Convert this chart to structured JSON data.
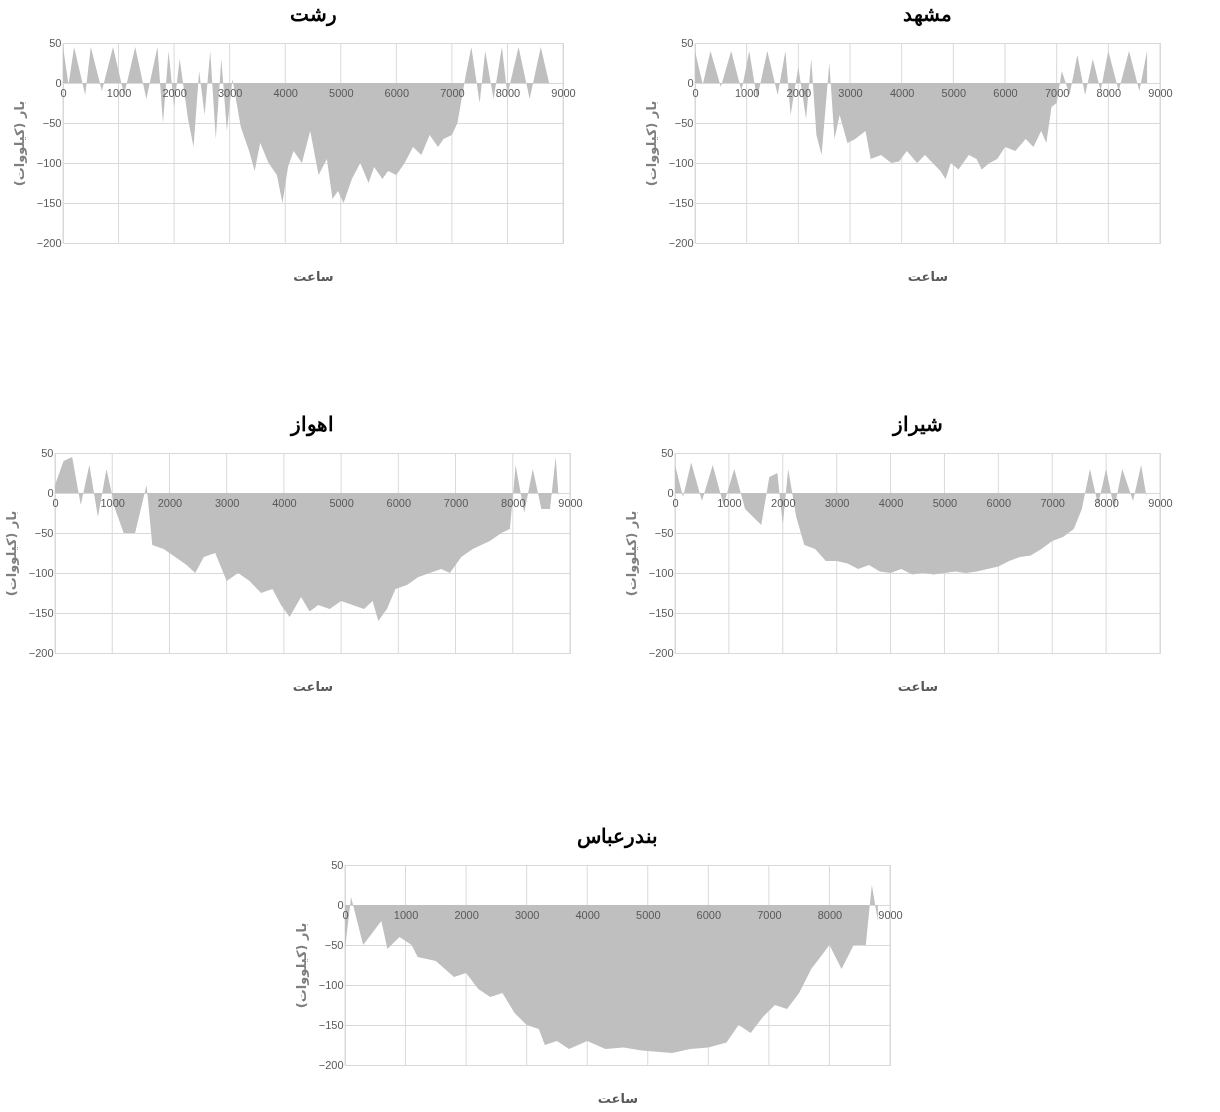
{
  "chart_data": [
    {
      "type": "area",
      "title": "رشت",
      "xlabel": "ساعت",
      "ylabel": "بار (کیلووات)",
      "xlim": [
        0,
        9000
      ],
      "ylim": [
        -200,
        50
      ],
      "xticks": [
        0,
        1000,
        2000,
        3000,
        4000,
        5000,
        6000,
        7000,
        8000,
        9000
      ],
      "yticks": [
        -200,
        -150,
        -100,
        -50,
        0,
        50
      ],
      "grid": true,
      "series": [
        {
          "color": "#bfbfbf",
          "x": [
            0,
            100,
            200,
            400,
            500,
            700,
            900,
            1100,
            1300,
            1500,
            1700,
            1800,
            1900,
            2000,
            2100,
            2250,
            2350,
            2450,
            2550,
            2650,
            2750,
            2850,
            2950,
            3050,
            3200,
            3350,
            3450,
            3550,
            3700,
            3850,
            3950,
            4050,
            4150,
            4300,
            4450,
            4600,
            4750,
            4850,
            4950,
            5050,
            5200,
            5350,
            5500,
            5600,
            5750,
            5850,
            6000,
            6150,
            6300,
            6450,
            6600,
            6750,
            6850,
            7000,
            7100,
            7250,
            7350,
            7500,
            7600,
            7750,
            7900,
            8000,
            8200,
            8400,
            8600,
            8750
          ],
          "values": [
            45,
            -2,
            45,
            -15,
            45,
            -10,
            45,
            -15,
            45,
            -20,
            45,
            -50,
            40,
            -30,
            30,
            -45,
            -80,
            15,
            -40,
            40,
            -70,
            30,
            -60,
            5,
            -55,
            -85,
            -110,
            -75,
            -100,
            -115,
            -150,
            -105,
            -85,
            -100,
            -60,
            -115,
            -95,
            -145,
            -135,
            -150,
            -120,
            -100,
            -125,
            -105,
            -120,
            -110,
            -115,
            -100,
            -80,
            -90,
            -65,
            -80,
            -70,
            -65,
            -50,
            10,
            45,
            -25,
            40,
            -20,
            45,
            -15,
            45,
            -20,
            45,
            0
          ]
        }
      ]
    },
    {
      "type": "area",
      "title": "مشهد",
      "xlabel": "ساعت",
      "ylabel": "بار (کیلووات)",
      "xlim": [
        0,
        9000
      ],
      "ylim": [
        -200,
        50
      ],
      "xticks": [
        0,
        1000,
        2000,
        3000,
        4000,
        5000,
        6000,
        7000,
        8000,
        9000
      ],
      "yticks": [
        -200,
        -150,
        -100,
        -50,
        0,
        50
      ],
      "grid": true,
      "series": [
        {
          "color": "#bfbfbf",
          "x": [
            0,
            150,
            300,
            500,
            700,
            900,
            1050,
            1200,
            1400,
            1600,
            1750,
            1850,
            2000,
            2150,
            2250,
            2350,
            2450,
            2600,
            2700,
            2800,
            2950,
            3100,
            3300,
            3400,
            3600,
            3800,
            3950,
            4100,
            4300,
            4450,
            4600,
            4750,
            4850,
            4950,
            5100,
            5300,
            5450,
            5550,
            5700,
            5850,
            6000,
            6200,
            6400,
            6550,
            6700,
            6800,
            6900,
            7000,
            7100,
            7250,
            7400,
            7550,
            7700,
            7850,
            8000,
            8200,
            8400,
            8600,
            8750
          ],
          "values": [
            40,
            -2,
            40,
            -5,
            40,
            -10,
            40,
            -20,
            40,
            -15,
            40,
            -40,
            20,
            -45,
            30,
            -65,
            -90,
            25,
            -70,
            -40,
            -75,
            -70,
            -60,
            -95,
            -90,
            -100,
            -98,
            -85,
            -100,
            -90,
            -100,
            -110,
            -120,
            -100,
            -108,
            -90,
            -95,
            -108,
            -100,
            -95,
            -80,
            -85,
            -70,
            -80,
            -60,
            -75,
            -30,
            -25,
            15,
            -15,
            35,
            -15,
            30,
            -10,
            40,
            -10,
            40,
            -10,
            40
          ]
        }
      ]
    },
    {
      "type": "area",
      "title": "اهواز",
      "xlabel": "ساعت",
      "ylabel": "بار (کیلووات)",
      "xlim": [
        0,
        9000
      ],
      "ylim": [
        -200,
        50
      ],
      "xticks": [
        0,
        1000,
        2000,
        3000,
        4000,
        5000,
        6000,
        7000,
        8000,
        9000
      ],
      "yticks": [
        -200,
        -150,
        -100,
        -50,
        0,
        50
      ],
      "grid": true,
      "series": [
        {
          "color": "#bfbfbf",
          "x": [
            0,
            150,
            300,
            450,
            600,
            750,
            900,
            1050,
            1200,
            1400,
            1600,
            1700,
            1900,
            2100,
            2300,
            2450,
            2600,
            2800,
            3000,
            3200,
            3400,
            3600,
            3800,
            3950,
            4100,
            4300,
            4450,
            4600,
            4800,
            5000,
            5200,
            5400,
            5550,
            5650,
            5800,
            5950,
            6150,
            6350,
            6550,
            6750,
            6900,
            7100,
            7300,
            7450,
            7600,
            7800,
            7950,
            8050,
            8200,
            8350,
            8500,
            8650,
            8750,
            8800
          ],
          "values": [
            10,
            40,
            45,
            -15,
            35,
            -30,
            30,
            -20,
            -50,
            -50,
            10,
            -65,
            -70,
            -80,
            -90,
            -100,
            -80,
            -75,
            -110,
            -100,
            -110,
            -125,
            -120,
            -140,
            -155,
            -130,
            -148,
            -140,
            -145,
            -135,
            -140,
            -145,
            -135,
            -160,
            -145,
            -120,
            -115,
            -105,
            -100,
            -95,
            -100,
            -80,
            -70,
            -65,
            -60,
            -50,
            -45,
            35,
            -25,
            30,
            -20,
            -20,
            45,
            -5
          ]
        }
      ]
    },
    {
      "type": "area",
      "title": "شیراز",
      "xlabel": "ساعت",
      "ylabel": "بار (کیلووات)",
      "xlim": [
        0,
        9000
      ],
      "ylim": [
        -200,
        50
      ],
      "xticks": [
        0,
        1000,
        2000,
        3000,
        4000,
        5000,
        6000,
        7000,
        8000,
        9000
      ],
      "yticks": [
        -200,
        -150,
        -100,
        -50,
        0,
        50
      ],
      "grid": true,
      "series": [
        {
          "color": "#bfbfbf",
          "x": [
            0,
            150,
            300,
            500,
            700,
            900,
            1100,
            1300,
            1450,
            1600,
            1750,
            1900,
            2000,
            2100,
            2250,
            2400,
            2600,
            2800,
            3000,
            3200,
            3400,
            3600,
            3800,
            4000,
            4200,
            4400,
            4600,
            4800,
            5000,
            5200,
            5400,
            5600,
            5800,
            6000,
            6200,
            6400,
            6600,
            6800,
            7000,
            7200,
            7400,
            7550,
            7700,
            7850,
            8000,
            8150,
            8300,
            8500,
            8650,
            8750
          ],
          "values": [
            35,
            -5,
            38,
            -10,
            35,
            -15,
            30,
            -20,
            -30,
            -40,
            20,
            25,
            -40,
            30,
            -30,
            -65,
            -70,
            -85,
            -85,
            -88,
            -95,
            -90,
            -98,
            -100,
            -95,
            -102,
            -100,
            -102,
            -100,
            -98,
            -100,
            -98,
            -95,
            -92,
            -85,
            -80,
            -78,
            -70,
            -60,
            -55,
            -45,
            -20,
            30,
            -15,
            30,
            -20,
            30,
            -10,
            35,
            -5
          ]
        }
      ]
    },
    {
      "type": "area",
      "title": "بندرعباس",
      "xlabel": "ساعت",
      "ylabel": "بار (کیلووات)",
      "xlim": [
        0,
        9000
      ],
      "ylim": [
        -200,
        50
      ],
      "xticks": [
        0,
        1000,
        2000,
        3000,
        4000,
        5000,
        6000,
        7000,
        8000,
        9000
      ],
      "yticks": [
        -200,
        -150,
        -100,
        -50,
        0,
        50
      ],
      "grid": true,
      "series": [
        {
          "color": "#bfbfbf",
          "x": [
            0,
            100,
            300,
            600,
            700,
            900,
            1100,
            1200,
            1500,
            1800,
            2000,
            2200,
            2400,
            2600,
            2800,
            3000,
            3200,
            3300,
            3500,
            3700,
            4000,
            4300,
            4600,
            4900,
            5100,
            5400,
            5700,
            6000,
            6300,
            6500,
            6700,
            6900,
            7100,
            7300,
            7500,
            7700,
            7900,
            8000,
            8200,
            8400,
            8600,
            8700,
            8800
          ],
          "values": [
            -55,
            10,
            -50,
            -20,
            -55,
            -40,
            -50,
            -65,
            -70,
            -90,
            -85,
            -105,
            -115,
            -110,
            -135,
            -150,
            -155,
            -175,
            -170,
            -180,
            -170,
            -180,
            -178,
            -182,
            -183,
            -185,
            -180,
            -178,
            -172,
            -150,
            -160,
            -140,
            -125,
            -130,
            -110,
            -80,
            -60,
            -50,
            -80,
            -50,
            -50,
            25,
            -20
          ]
        }
      ]
    }
  ]
}
